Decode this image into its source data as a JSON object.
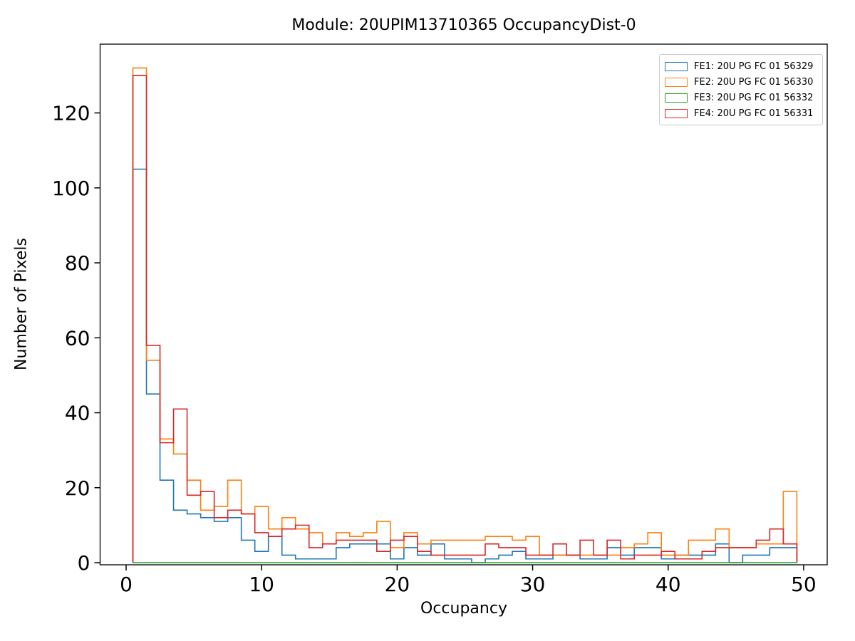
{
  "chart": {
    "title": "Module: 20UPIM13710365 OccupancyDist-0",
    "xlabel": "Occupancy",
    "ylabel": "Number of Pixels"
  },
  "legend": {
    "items": [
      {
        "label": "FE1: 20U PG FC 01 56329",
        "color": "#1f77b4"
      },
      {
        "label": "FE2: 20U PG FC 01 56330",
        "color": "#ff7f0e"
      },
      {
        "label": "FE3: 20U PG FC 01 56332",
        "color": "#2ca02c"
      },
      {
        "label": "FE4: 20U PG FC 01 56331",
        "color": "#d62728"
      }
    ]
  },
  "chart_data": {
    "type": "step-histogram",
    "title": "Module: 20UPIM13710365 OccupancyDist-0",
    "xlabel": "Occupancy",
    "ylabel": "Number of Pixels",
    "bin_start": 0.5,
    "bin_width": 1,
    "n_bins": 49,
    "xticks": [
      0,
      10,
      20,
      30,
      40,
      50
    ],
    "yticks": [
      0,
      20,
      40,
      60,
      80,
      100,
      120
    ],
    "xlim": [
      -1.92,
      51.74
    ],
    "ylim": [
      -0.57,
      138.35
    ],
    "grid": false,
    "legend_position": "upper right",
    "series": [
      {
        "name": "FE1: 20U PG FC 01 56329",
        "color": "#1f77b4",
        "values": [
          105,
          45,
          22,
          14,
          13,
          12,
          11,
          12,
          6,
          3,
          7,
          2,
          1,
          1,
          1,
          4,
          5,
          5,
          5,
          1,
          4,
          2,
          5,
          1,
          1,
          0,
          1,
          2,
          3,
          1,
          1,
          2,
          2,
          1,
          1,
          4,
          2,
          4,
          4,
          1,
          2,
          2,
          2,
          5,
          0,
          2,
          2,
          4,
          4
        ]
      },
      {
        "name": "FE2: 20U PG FC 01 56330",
        "color": "#ff7f0e",
        "values": [
          132,
          54,
          33,
          29,
          22,
          14,
          15,
          22,
          13,
          15,
          9,
          12,
          9,
          8,
          5,
          8,
          7,
          8,
          11,
          4,
          8,
          5,
          6,
          6,
          6,
          6,
          7,
          7,
          6,
          7,
          2,
          2,
          2,
          2,
          2,
          2,
          4,
          5,
          8,
          2,
          2,
          6,
          6,
          9,
          4,
          4,
          5,
          5,
          19
        ]
      },
      {
        "name": "FE3: 20U PG FC 01 56332",
        "color": "#2ca02c",
        "values": [
          0,
          0,
          0,
          0,
          0,
          0,
          0,
          0,
          0,
          0,
          0,
          0,
          0,
          0,
          0,
          0,
          0,
          0,
          0,
          0,
          0,
          0,
          0,
          0,
          0,
          0,
          0,
          0,
          0,
          0,
          0,
          0,
          0,
          0,
          0,
          0,
          0,
          0,
          0,
          0,
          0,
          0,
          0,
          0,
          0,
          0,
          0,
          0,
          0
        ]
      },
      {
        "name": "FE4: 20U PG FC 01 56331",
        "color": "#d62728",
        "values": [
          130,
          58,
          32,
          41,
          18,
          19,
          12,
          14,
          13,
          8,
          7,
          9,
          10,
          4,
          5,
          6,
          6,
          6,
          3,
          6,
          7,
          3,
          2,
          2,
          2,
          2,
          5,
          4,
          4,
          2,
          2,
          5,
          2,
          6,
          2,
          6,
          1,
          2,
          2,
          3,
          1,
          1,
          3,
          4,
          4,
          4,
          6,
          9,
          5
        ]
      }
    ]
  }
}
